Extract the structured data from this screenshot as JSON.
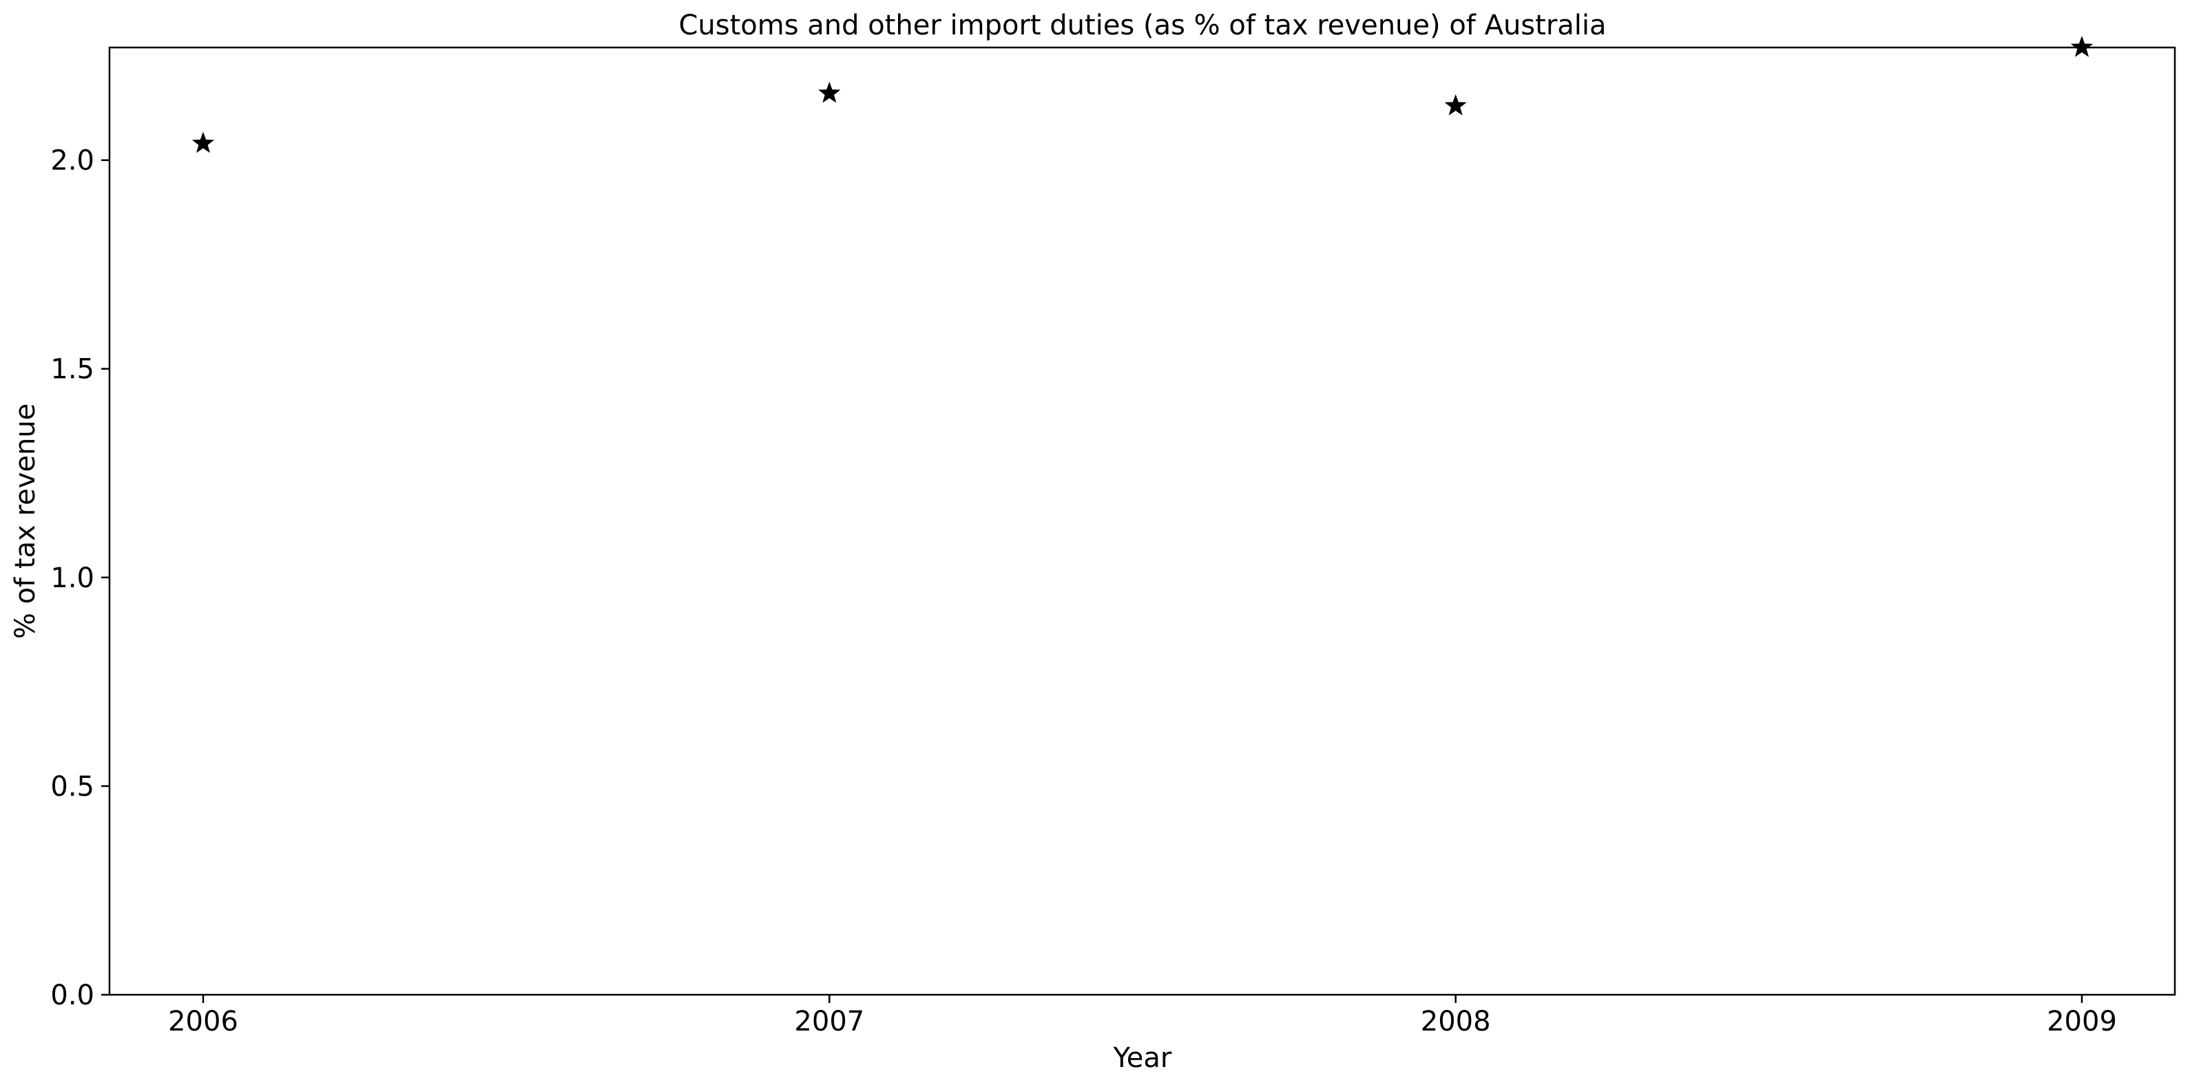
{
  "chart_data": {
    "type": "scatter",
    "title": "Customs and other import duties (as % of tax revenue) of Australia",
    "xlabel": "Year",
    "ylabel": "% of tax revenue",
    "x": [
      "2006",
      "2007",
      "2008",
      "2009"
    ],
    "series": [
      {
        "values": [
          2.04,
          2.16,
          2.13,
          2.27
        ],
        "marker": "star",
        "color": "#000000"
      }
    ],
    "ylim": [
      0.0,
      2.27
    ],
    "y_ticks": [
      "0.0",
      "0.5",
      "1.0",
      "1.5",
      "2.0"
    ],
    "grid": false,
    "legend": "none"
  }
}
